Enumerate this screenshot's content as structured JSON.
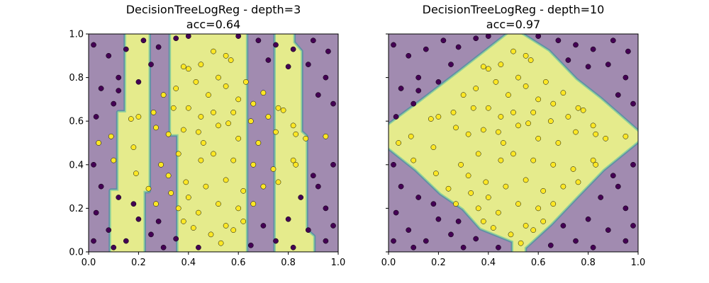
{
  "colors": {
    "class0": "#440154",
    "class1": "#fde725",
    "region0": "#a18bb0",
    "region1": "#e5eb8c",
    "boundary_outer": "#5f8ea6",
    "boundary_inner": "#8fd19a"
  },
  "chart_data": [
    {
      "type": "scatter",
      "title": "DecisionTreeLogReg - depth=3",
      "subtitle": "acc=0.64",
      "xlim": [
        0,
        1
      ],
      "ylim": [
        0,
        1
      ],
      "xticks": [
        "0.0",
        "0.2",
        "0.4",
        "0.6",
        "0.8",
        "1.0"
      ],
      "yticks": [
        "0.0",
        "0.2",
        "0.4",
        "0.6",
        "0.8",
        "1.0"
      ],
      "show_ytick_labels": true,
      "grid": false,
      "decision_region_class1": [
        [
          [
            0.15,
            1
          ],
          [
            0.24,
            1
          ],
          [
            0.24,
            0.28
          ],
          [
            0.22,
            0.28
          ],
          [
            0.22,
            0
          ],
          [
            0.09,
            0
          ],
          [
            0.09,
            0.28
          ],
          [
            0.12,
            0.28
          ],
          [
            0.12,
            0.64
          ],
          [
            0.15,
            0.64
          ]
        ],
        [
          [
            0.33,
            1
          ],
          [
            0.63,
            1
          ],
          [
            0.63,
            0
          ],
          [
            0.36,
            0
          ],
          [
            0.36,
            0.54
          ],
          [
            0.33,
            0.54
          ]
        ],
        [
          [
            0.75,
            1
          ],
          [
            0.82,
            1
          ],
          [
            0.82,
            0.96
          ],
          [
            0.85,
            0.92
          ],
          [
            0.85,
            0.55
          ],
          [
            0.87,
            0.53
          ],
          [
            0.87,
            0.1
          ],
          [
            0.9,
            0.07
          ],
          [
            0.9,
            0
          ],
          [
            0.75,
            0
          ]
        ]
      ]
    },
    {
      "type": "scatter",
      "title": "DecisionTreeLogReg - depth=10",
      "subtitle": "acc=0.97",
      "xlim": [
        0,
        1
      ],
      "ylim": [
        0,
        1
      ],
      "xticks": [
        "0.0",
        "0.2",
        "0.4",
        "0.6",
        "0.8",
        "1.0"
      ],
      "yticks": [
        "0.0",
        "0.2",
        "0.4",
        "0.6",
        "0.8",
        "1.0"
      ],
      "show_ytick_labels": false,
      "grid": false,
      "decision_region_class1": [
        [
          [
            0,
            0.58
          ],
          [
            0.13,
            0.69
          ],
          [
            0.29,
            0.83
          ],
          [
            0.48,
            1
          ],
          [
            0.53,
            1
          ],
          [
            0.64,
            0.92
          ],
          [
            0.75,
            0.79
          ],
          [
            0.85,
            0.7
          ],
          [
            1,
            0.55
          ],
          [
            1,
            0.51
          ],
          [
            0.86,
            0.38
          ],
          [
            0.75,
            0.25
          ],
          [
            0.65,
            0.13
          ],
          [
            0.545,
            0.02
          ],
          [
            0.545,
            0
          ],
          [
            0.5,
            0
          ],
          [
            0.5,
            0.05
          ],
          [
            0.37,
            0.11
          ],
          [
            0.3,
            0.2
          ],
          [
            0.21,
            0.27
          ],
          [
            0.11,
            0.38
          ],
          [
            0,
            0.48
          ]
        ]
      ]
    }
  ],
  "points": {
    "class1": [
      [
        0.38,
        0.85
      ],
      [
        0.4,
        0.84
      ],
      [
        0.45,
        0.86
      ],
      [
        0.5,
        0.92
      ],
      [
        0.55,
        0.9
      ],
      [
        0.57,
        0.88
      ],
      [
        0.52,
        0.8
      ],
      [
        0.43,
        0.78
      ],
      [
        0.48,
        0.72
      ],
      [
        0.55,
        0.76
      ],
      [
        0.6,
        0.7
      ],
      [
        0.66,
        0.68
      ],
      [
        0.7,
        0.73
      ],
      [
        0.72,
        0.62
      ],
      [
        0.78,
        0.65
      ],
      [
        0.65,
        0.6
      ],
      [
        0.58,
        0.64
      ],
      [
        0.5,
        0.64
      ],
      [
        0.45,
        0.62
      ],
      [
        0.4,
        0.66
      ],
      [
        0.34,
        0.66
      ],
      [
        0.26,
        0.64
      ],
      [
        0.2,
        0.62
      ],
      [
        0.17,
        0.61
      ],
      [
        0.27,
        0.57
      ],
      [
        0.32,
        0.54
      ],
      [
        0.38,
        0.56
      ],
      [
        0.44,
        0.55
      ],
      [
        0.52,
        0.58
      ],
      [
        0.6,
        0.52
      ],
      [
        0.68,
        0.5
      ],
      [
        0.75,
        0.55
      ],
      [
        0.83,
        0.54
      ],
      [
        0.87,
        0.52
      ],
      [
        0.95,
        0.53
      ],
      [
        0.09,
        0.53
      ],
      [
        0.04,
        0.5
      ],
      [
        0.18,
        0.48
      ],
      [
        0.1,
        0.42
      ],
      [
        0.19,
        0.36
      ],
      [
        0.29,
        0.4
      ],
      [
        0.36,
        0.45
      ],
      [
        0.45,
        0.42
      ],
      [
        0.5,
        0.45
      ],
      [
        0.58,
        0.42
      ],
      [
        0.66,
        0.4
      ],
      [
        0.74,
        0.38
      ],
      [
        0.82,
        0.42
      ],
      [
        0.83,
        0.4
      ],
      [
        0.76,
        0.32
      ],
      [
        0.7,
        0.3
      ],
      [
        0.62,
        0.28
      ],
      [
        0.55,
        0.33
      ],
      [
        0.47,
        0.3
      ],
      [
        0.4,
        0.25
      ],
      [
        0.33,
        0.27
      ],
      [
        0.24,
        0.29
      ],
      [
        0.27,
        0.22
      ],
      [
        0.36,
        0.2
      ],
      [
        0.44,
        0.18
      ],
      [
        0.52,
        0.22
      ],
      [
        0.6,
        0.2
      ],
      [
        0.66,
        0.22
      ],
      [
        0.62,
        0.14
      ],
      [
        0.58,
        0.1
      ],
      [
        0.55,
        0.12
      ],
      [
        0.49,
        0.08
      ],
      [
        0.42,
        0.11
      ],
      [
        0.38,
        0.14
      ],
      [
        0.53,
        0.04
      ],
      [
        0.32,
        0.35
      ],
      [
        0.39,
        0.32
      ],
      [
        0.56,
        0.59
      ],
      [
        0.63,
        0.78
      ],
      [
        0.76,
        0.66
      ],
      [
        0.82,
        0.58
      ],
      [
        0.46,
        0.5
      ],
      [
        0.35,
        0.75
      ],
      [
        0.3,
        0.72
      ]
    ],
    "class0": [
      [
        0.02,
        0.95
      ],
      [
        0.08,
        0.9
      ],
      [
        0.15,
        0.93
      ],
      [
        0.22,
        0.97
      ],
      [
        0.28,
        0.94
      ],
      [
        0.35,
        0.98
      ],
      [
        0.4,
        0.99
      ],
      [
        0.6,
        0.99
      ],
      [
        0.68,
        0.97
      ],
      [
        0.75,
        0.95
      ],
      [
        0.82,
        0.93
      ],
      [
        0.9,
        0.97
      ],
      [
        0.96,
        0.92
      ],
      [
        0.88,
        0.86
      ],
      [
        0.95,
        0.8
      ],
      [
        0.8,
        0.85
      ],
      [
        0.72,
        0.88
      ],
      [
        0.92,
        0.72
      ],
      [
        0.98,
        0.68
      ],
      [
        0.12,
        0.8
      ],
      [
        0.05,
        0.75
      ],
      [
        0.2,
        0.78
      ],
      [
        0.25,
        0.86
      ],
      [
        0.1,
        0.68
      ],
      [
        0.03,
        0.62
      ],
      [
        0.12,
        0.74
      ],
      [
        0.02,
        0.4
      ],
      [
        0.05,
        0.3
      ],
      [
        0.12,
        0.25
      ],
      [
        0.03,
        0.18
      ],
      [
        0.08,
        0.1
      ],
      [
        0.15,
        0.05
      ],
      [
        0.02,
        0.05
      ],
      [
        0.2,
        0.15
      ],
      [
        0.25,
        0.08
      ],
      [
        0.3,
        0.02
      ],
      [
        0.35,
        0.06
      ],
      [
        0.18,
        0.22
      ],
      [
        0.28,
        0.14
      ],
      [
        0.1,
        0.02
      ],
      [
        0.44,
        0.02
      ],
      [
        0.98,
        0.4
      ],
      [
        0.92,
        0.3
      ],
      [
        0.85,
        0.25
      ],
      [
        0.95,
        0.2
      ],
      [
        0.8,
        0.15
      ],
      [
        0.88,
        0.1
      ],
      [
        0.75,
        0.05
      ],
      [
        0.95,
        0.05
      ],
      [
        0.65,
        0.03
      ],
      [
        0.7,
        0.12
      ],
      [
        0.82,
        0.02
      ],
      [
        0.9,
        0.35
      ],
      [
        0.98,
        0.12
      ]
    ]
  }
}
